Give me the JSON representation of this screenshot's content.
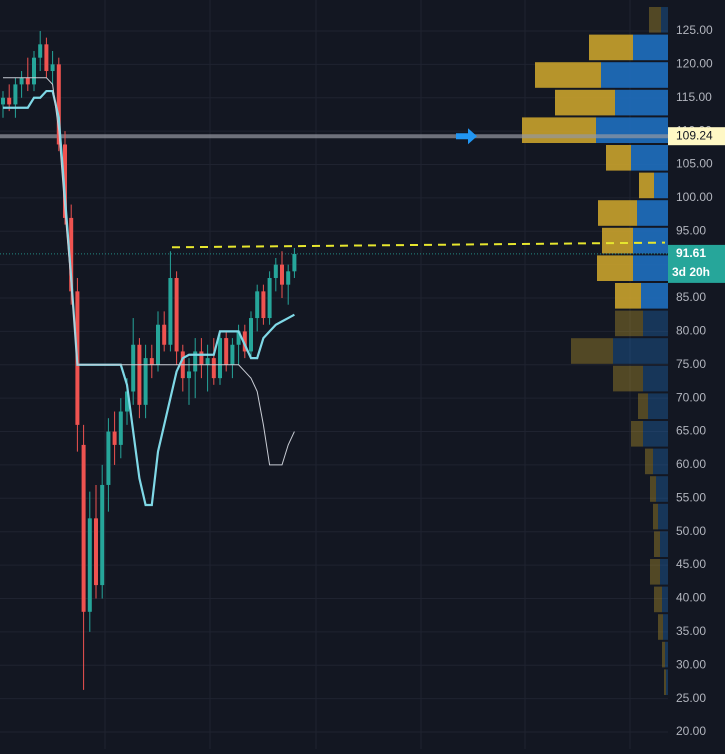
{
  "chart_data": {
    "type": "candlestick",
    "up_color": "#26a69a",
    "down_color": "#ef5350",
    "open": [
      114,
      115,
      114,
      117,
      118,
      117,
      121,
      123,
      119,
      120,
      108,
      97,
      86,
      63,
      38,
      52,
      42,
      57,
      65,
      63,
      68,
      71,
      78,
      69,
      76,
      75,
      81,
      78,
      88,
      77,
      73,
      74,
      77,
      75,
      76,
      73,
      79,
      75,
      78,
      80,
      77,
      82,
      86,
      82,
      88,
      90,
      87,
      89
    ],
    "high": [
      116,
      117,
      118,
      119,
      121,
      122,
      125,
      124,
      122,
      121,
      110,
      99,
      88,
      66,
      56,
      57,
      60,
      67,
      68,
      70,
      73,
      82,
      79,
      78,
      78,
      83,
      83,
      92,
      89,
      78,
      76,
      79,
      79,
      78,
      79,
      80,
      80,
      79,
      81,
      81,
      83,
      87,
      87,
      89,
      91,
      92,
      90,
      92.5
    ],
    "low": [
      112,
      113,
      112,
      115,
      116,
      116,
      119,
      118,
      117,
      107,
      96,
      84,
      62,
      26.3,
      35,
      40,
      40,
      53,
      60,
      61,
      66,
      69,
      67,
      67,
      73,
      74,
      77,
      77,
      75,
      71,
      69,
      70,
      73,
      71,
      72,
      72,
      74,
      73,
      75,
      76,
      76,
      80,
      81,
      81,
      86,
      85,
      84,
      88
    ],
    "close": [
      115,
      114,
      117,
      118,
      117,
      121,
      123,
      119,
      120,
      108,
      97,
      86,
      66,
      38,
      52,
      42,
      57,
      65,
      63,
      68,
      71,
      78,
      69,
      76,
      75,
      81,
      78,
      88,
      77,
      73,
      74,
      77,
      75,
      76,
      73,
      79,
      75,
      78,
      80,
      77,
      82,
      86,
      82,
      88,
      90,
      87,
      89,
      91.61
    ],
    "lines": [
      {
        "color": "#7fd8e6",
        "values": [
          113.5,
          113.5,
          113.5,
          113.5,
          113.5,
          115,
          115,
          116,
          116,
          112,
          100,
          88,
          75,
          75,
          75,
          75,
          75,
          75,
          75,
          75,
          72,
          65,
          58,
          54,
          54,
          62,
          66,
          70,
          74,
          76,
          76.5,
          76.5,
          76.5,
          76.5,
          76.5,
          80,
          80,
          80,
          80,
          78,
          76,
          76,
          79,
          80,
          81,
          81.5,
          82,
          82.5
        ]
      },
      {
        "color": "#c8ccd4",
        "values": [
          118,
          118,
          118,
          118,
          118,
          118,
          118,
          118,
          117,
          110,
          98,
          87,
          75,
          75,
          75,
          75,
          75,
          75,
          75,
          75,
          75,
          75,
          75,
          75,
          75,
          75,
          75,
          75,
          75,
          75,
          75,
          75,
          75,
          75,
          75,
          75,
          75,
          75,
          75,
          74,
          73,
          71,
          66,
          60,
          60,
          60,
          63,
          65
        ]
      }
    ],
    "ylim": [
      17.45,
      129.64
    ],
    "yticks": [
      {
        "value": 125,
        "label": "125.00"
      },
      {
        "value": 120,
        "label": "120.00"
      },
      {
        "value": 115,
        "label": "115.00"
      },
      {
        "value": 110,
        "label": "110.00"
      },
      {
        "value": 105,
        "label": "105.00"
      },
      {
        "value": 100,
        "label": "100.00"
      },
      {
        "value": 95,
        "label": "95.00"
      },
      {
        "value": 90,
        "label": "90.00"
      },
      {
        "value": 85,
        "label": "85.00"
      },
      {
        "value": 80,
        "label": "80.00"
      },
      {
        "value": 75,
        "label": "75.00"
      },
      {
        "value": 70,
        "label": "70.00"
      },
      {
        "value": 65,
        "label": "65.00"
      },
      {
        "value": 60,
        "label": "60.00"
      },
      {
        "value": 55,
        "label": "55.00"
      },
      {
        "value": 50,
        "label": "50.00"
      },
      {
        "value": 45,
        "label": "45.00"
      },
      {
        "value": 40,
        "label": "40.00"
      },
      {
        "value": 35,
        "label": "35.00"
      },
      {
        "value": 30,
        "label": "30.00"
      },
      {
        "value": 25,
        "label": "25.00"
      },
      {
        "value": 20,
        "label": "20.00"
      }
    ],
    "grid": true,
    "volume_profile": {
      "rows_top": 128.74,
      "row_size": 4.134,
      "value_area_high": 125,
      "value_area_low": 83,
      "buy_color": "#1f6fbf",
      "sell_color": "#c9a22c",
      "sell": [
        12,
        44,
        66,
        60,
        74,
        25,
        15,
        39,
        31,
        36,
        26,
        28,
        42,
        30,
        10,
        12,
        8,
        6,
        5,
        6,
        10,
        8,
        5,
        3,
        2
      ],
      "buy": [
        7,
        35,
        67,
        53,
        72,
        37,
        14,
        31,
        35,
        35,
        27,
        25,
        55,
        25,
        20,
        25,
        15,
        12,
        10,
        8,
        8,
        6,
        5,
        3,
        2
      ]
    },
    "price_line": {
      "value": 109.24,
      "label": "109.24"
    },
    "last_price": {
      "value": 91.61,
      "label": "91.61",
      "countdown": "3d 20h"
    },
    "trend_line": {
      "color": "#e6e62e",
      "values": [
        92.6,
        93.3
      ]
    }
  }
}
